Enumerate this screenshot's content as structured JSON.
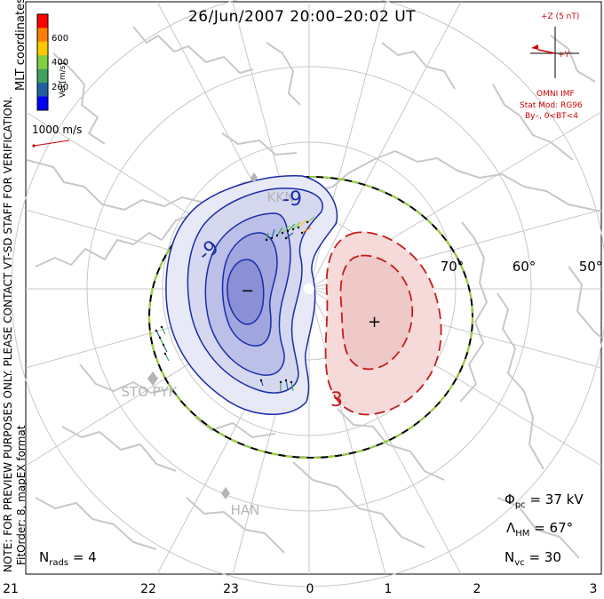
{
  "title": "26/Jun/2007 20:00–20:02 UT",
  "coordinate_label": "MLT coordinates",
  "color_scale": {
    "unit_label": "Vel [m/s]",
    "ticks": [
      "600",
      "400",
      "200"
    ],
    "colors": [
      "#ff0000",
      "#ff8000",
      "#ffc800",
      "#80d040",
      "#40a060",
      "#2060a0",
      "#0000ff"
    ]
  },
  "speed_reference": "1000 m/s",
  "watermark": "NOTE: FOR PREVIEW PURPOSES ONLY. PLEASE CONTACT VT-SD STAFF FOR VERIFICATION.",
  "fit_info": "FitOrder: 8, mapEX format",
  "imf": {
    "z_label": "+Z (5 nT)",
    "y_label": "+Y",
    "source": "OMNI IMF",
    "stat_model": "Stat Mod: RG96",
    "condition": "By–, 0<BT<4"
  },
  "latitude_labels": [
    "70°",
    "60°",
    "50°"
  ],
  "mlt_labels": [
    "21",
    "22",
    "23",
    "0",
    "1",
    "2",
    "3"
  ],
  "sites": [
    "KKN",
    "STO PYK",
    "HAN"
  ],
  "contour_labels": [
    "-9",
    "-9",
    "3"
  ],
  "extrema": {
    "min_marker": "−",
    "max_marker": "+"
  },
  "stats": {
    "phi_pc_symbol": "Φ",
    "phi_pc_sub": "pc",
    "phi_pc_value": "= 37 kV",
    "lambda_symbol": "Λ",
    "lambda_sub": "HM",
    "lambda_value": "= 67°",
    "nvc_symbol": "N",
    "nvc_sub": "vc",
    "nvc_value": "= 30",
    "nrads_symbol": "N",
    "nrads_sub": "rads",
    "nrads_value": "= 4"
  },
  "colors": {
    "negative_cell": "#1a2da8",
    "positive_cell": "#c41c1c",
    "coastline": "#c8c8c8",
    "grid": "#c8c8c8",
    "boundary_dash": "#9ad23a"
  }
}
